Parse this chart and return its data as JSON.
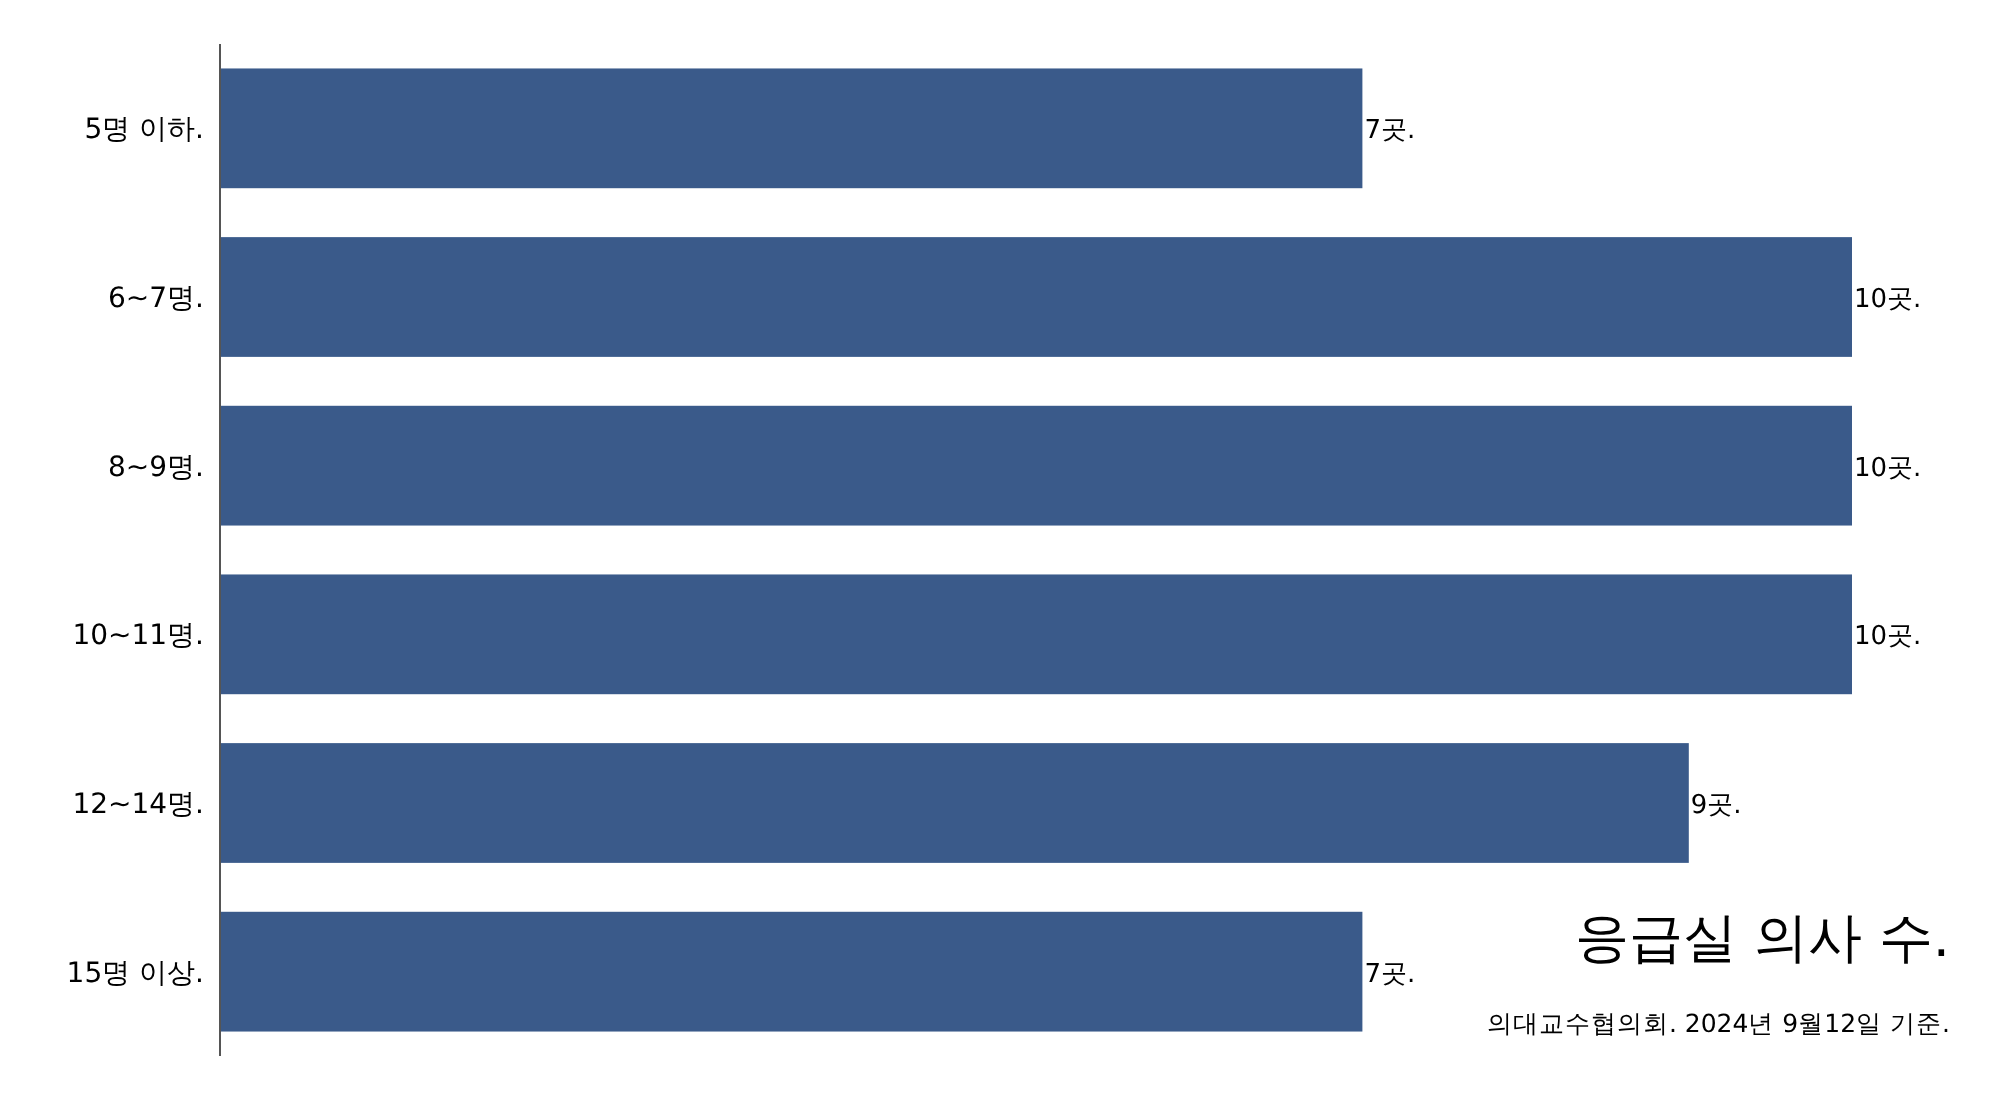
{
  "chart_data": {
    "type": "bar",
    "orientation": "horizontal",
    "title": "응급실 의사 수.",
    "categories": [
      "5명 이하.",
      "6~7명.",
      "8~9명.",
      "10~11명.",
      "12~14명.",
      "15명 이상."
    ],
    "values": [
      7,
      10,
      10,
      10,
      9,
      7
    ],
    "value_labels": [
      "7곳.",
      "10곳.",
      "10곳.",
      "10곳.",
      "9곳.",
      "7곳."
    ],
    "color": "#3a5a8a",
    "annotations": [
      "의대교수협의회. 2024년 9월12일 기준."
    ]
  }
}
